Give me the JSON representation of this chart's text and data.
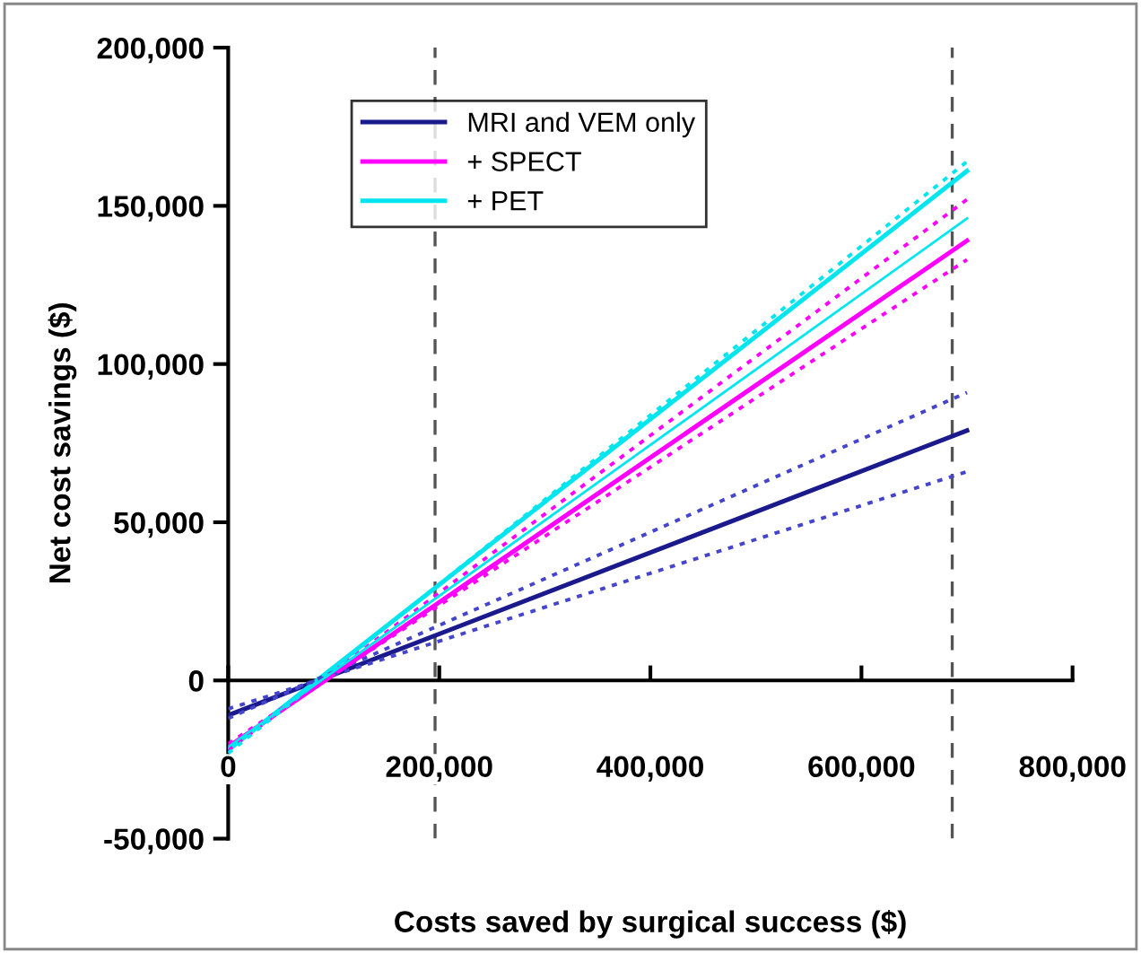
{
  "chart_data": {
    "type": "line",
    "xlabel": "Costs saved by surgical success ($)",
    "ylabel": "Net cost savings ($)",
    "x": [
      0,
      700000
    ],
    "series": [
      {
        "name": "MRI and VEM only",
        "color": "#1a1a8c",
        "values": [
          -11000,
          79000
        ],
        "line_style": "solid"
      },
      {
        "name": "+ SPECT",
        "color": "#ff00ff",
        "values": [
          -21000,
          139000
        ],
        "line_style": "solid"
      },
      {
        "name": "+ PET",
        "color": "#00e5ee",
        "values": [
          -22000,
          161000
        ],
        "line_style": "solid"
      },
      {
        "color": "#4444cc",
        "values": [
          -12000,
          91000
        ],
        "line_style": "dotted"
      },
      {
        "color": "#4444cc",
        "values": [
          -9000,
          66000
        ],
        "line_style": "dotted"
      },
      {
        "color": "#ff00ff",
        "values": [
          -22000,
          152000
        ],
        "line_style": "dotted"
      },
      {
        "color": "#ff00ff",
        "values": [
          -20000,
          133000
        ],
        "line_style": "dotted"
      },
      {
        "color": "#00e5ee",
        "values": [
          -23000,
          164000
        ],
        "line_style": "dotted"
      },
      {
        "color": "#00e5ee",
        "values": [
          -21000,
          146000
        ],
        "line_style": "solid"
      }
    ],
    "xlim": [
      0,
      800000
    ],
    "ylim": [
      -50000,
      200000
    ],
    "xticks": [
      {
        "value": 0,
        "label": "0"
      },
      {
        "value": 200000,
        "label": "200,000"
      },
      {
        "value": 400000,
        "label": "400,000"
      },
      {
        "value": 600000,
        "label": "600,000"
      },
      {
        "value": 800000,
        "label": "800,000"
      }
    ],
    "yticks": [
      {
        "value": -50000,
        "label": "-50,000"
      },
      {
        "value": 0,
        "label": "0"
      },
      {
        "value": 50000,
        "label": "50,000"
      },
      {
        "value": 100000,
        "label": "100,000"
      },
      {
        "value": 150000,
        "label": "150,000"
      },
      {
        "value": 200000,
        "label": "200,000"
      }
    ],
    "ref_lines": [
      {
        "axis": "x",
        "value": 196000,
        "color": "#555555",
        "line_style": "dashed"
      },
      {
        "axis": "x",
        "value": 686000,
        "color": "#555555",
        "line_style": "dashed"
      }
    ],
    "grid": false,
    "legend": "top left"
  }
}
